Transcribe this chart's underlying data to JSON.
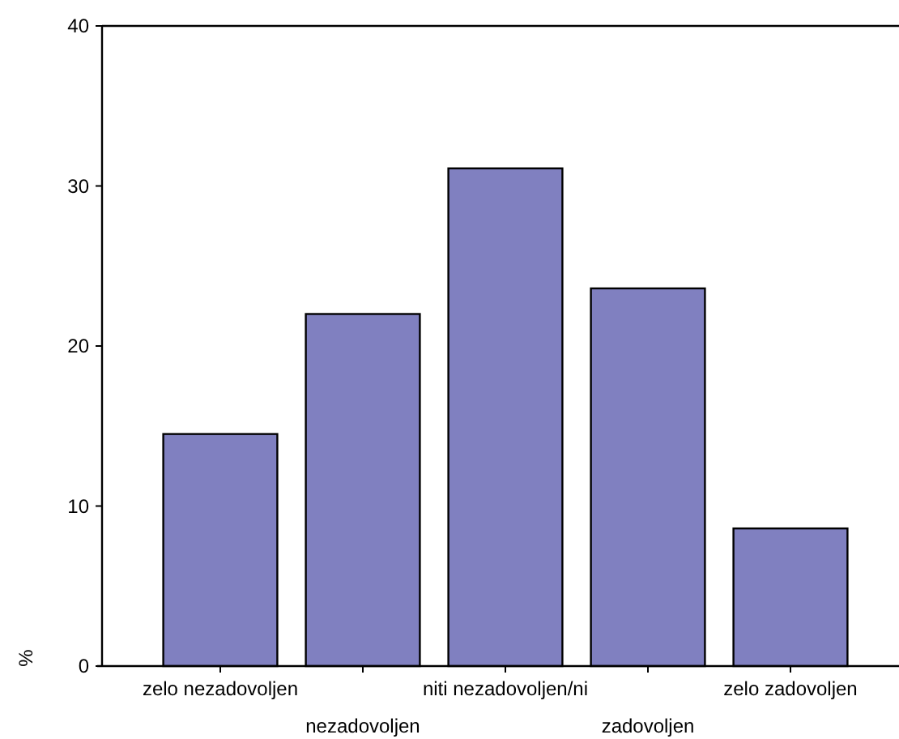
{
  "chart_data": {
    "type": "bar",
    "ylabel": "%",
    "categories": [
      "zelo nezadovoljen",
      "nezadovoljen",
      "niti nezadovoljen/ni",
      "zadovoljen",
      "zelo zadovoljen"
    ],
    "values": [
      14.5,
      22.0,
      31.1,
      23.6,
      8.6
    ],
    "color": "#8080c0",
    "ylim": [
      0,
      40
    ],
    "yticks": [
      0,
      10,
      20,
      30,
      40
    ],
    "grid": false
  }
}
